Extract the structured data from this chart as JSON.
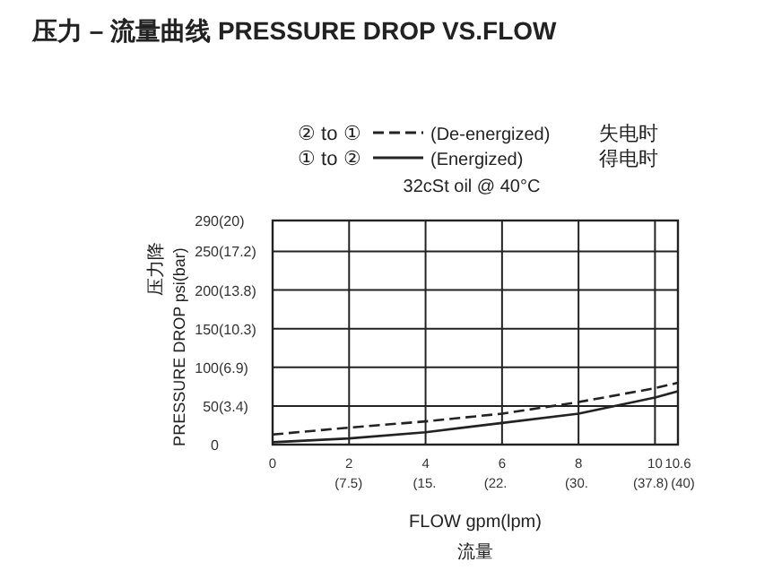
{
  "chart_data": {
    "type": "line",
    "title": "压力 – 流量曲线 PRESSURE DROP VS.FLOW",
    "xlabel": "FLOW   gpm(lpm)\n流量",
    "ylabel": "压力降\nPRESSURE DROP  psi(bar)",
    "annotations": [
      "② to ①",
      "失电时",
      "① to ②",
      "得电时",
      "32cSt oil @ 40°C"
    ],
    "x": [
      0,
      2,
      4,
      6,
      8,
      10,
      10.6
    ],
    "series": [
      {
        "name": "(De-energized)",
        "color": "#222222",
        "line_style": "dashed",
        "values": [
          13,
          22,
          30,
          40,
          55,
          73,
          80
        ]
      },
      {
        "name": "(Energized)",
        "color": "#222222",
        "line_style": "solid",
        "values": [
          3,
          8,
          16,
          28,
          40,
          61,
          69
        ]
      }
    ],
    "xlim": [
      0,
      10.6
    ],
    "ylim": [
      0,
      290
    ],
    "xticks": [
      0,
      2,
      4,
      6,
      8,
      10,
      10.6
    ],
    "x2lim": [
      0,
      40
    ],
    "x2ticks": [
      {
        "value": 7.5,
        "label": "(7.5)"
      },
      {
        "value": 15,
        "label": "(15."
      },
      {
        "value": 22,
        "label": "(22."
      },
      {
        "value": 30,
        "label": "(30."
      },
      {
        "value": 37.8,
        "label": "(37.8)"
      },
      {
        "value": 40,
        "label": "(40)"
      }
    ],
    "yticks": [
      0,
      50,
      100,
      150,
      200,
      250,
      290
    ],
    "y2lim": [
      0,
      20
    ],
    "y2ticks": [
      {
        "value": 3.4,
        "label": "(3.4)"
      },
      {
        "value": 6.9,
        "label": "(6.9)"
      },
      {
        "value": 10.3,
        "label": "(10.3)"
      },
      {
        "value": 13.8,
        "label": "(13.8)"
      },
      {
        "value": 17.2,
        "label": "(17.2)"
      },
      {
        "value": 20,
        "label": "(20)"
      }
    ],
    "grid": true,
    "legend": "top",
    "marker": "none"
  }
}
